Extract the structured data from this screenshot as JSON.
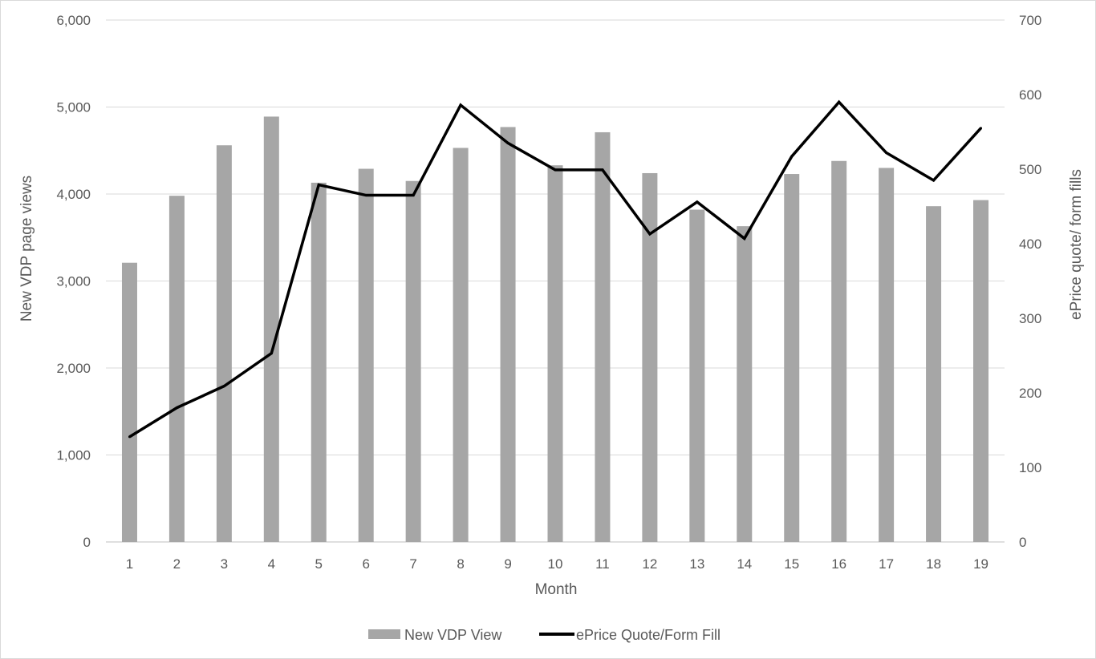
{
  "chart_data": {
    "type": "bar",
    "title": "",
    "xlabel": "Month",
    "ylabel": "New VDP page views",
    "y2label": "ePrice quote/ form fills",
    "categories": [
      "1",
      "2",
      "3",
      "4",
      "5",
      "6",
      "7",
      "8",
      "9",
      "10",
      "11",
      "12",
      "13",
      "14",
      "15",
      "16",
      "17",
      "18",
      "19"
    ],
    "ylim": [
      0,
      6000
    ],
    "y2lim": [
      0,
      700
    ],
    "y_ticks": [
      "0",
      "1,000",
      "2,000",
      "3,000",
      "4,000",
      "5,000",
      "6,000"
    ],
    "y2_ticks": [
      "0",
      "100",
      "200",
      "300",
      "400",
      "500",
      "600",
      "700"
    ],
    "grid": true,
    "legend_position": "bottom",
    "series": [
      {
        "name": "New VDP View",
        "type": "bar",
        "axis": "left",
        "color": "#a6a6a6",
        "values": [
          3210,
          3980,
          4560,
          4890,
          4130,
          4290,
          4150,
          4530,
          4770,
          4330,
          4710,
          4240,
          3820,
          3630,
          4230,
          4380,
          4300,
          3860,
          3930
        ]
      },
      {
        "name": "ePrice Quote/Form Fill",
        "type": "line",
        "axis": "right",
        "color": "#000000",
        "values": [
          141,
          180,
          209,
          253,
          479,
          465,
          465,
          586,
          535,
          499,
          499,
          413,
          456,
          407,
          517,
          590,
          522,
          485,
          555
        ]
      }
    ]
  }
}
